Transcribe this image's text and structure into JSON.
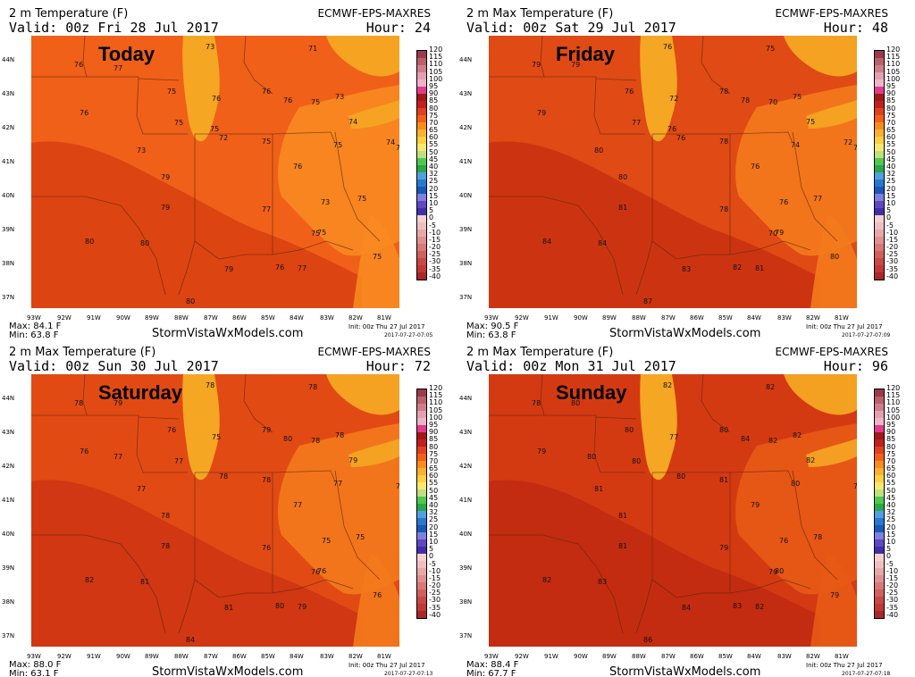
{
  "panels": [
    {
      "title": "2 m Temperature (F)",
      "valid": "Valid: 00z Fri 28 Jul 2017",
      "model": "ECMWF-EPS-MAXRES",
      "hour": "Hour: 24",
      "day": "Today",
      "max": "Max: 84.1 F",
      "min": "Min: 63.8 F",
      "stamp": "2017-07-27-07:05",
      "values": [
        [
          "73",
          195,
          8
        ],
        [
          "71",
          310,
          10
        ],
        [
          "76",
          48,
          28
        ],
        [
          "77",
          92,
          32
        ],
        [
          "75",
          152,
          58
        ],
        [
          "76",
          258,
          58
        ],
        [
          "76",
          282,
          68
        ],
        [
          "75",
          313,
          70
        ],
        [
          "73",
          340,
          64
        ],
        [
          "76",
          202,
          66
        ],
        [
          "76",
          54,
          82
        ],
        [
          "75",
          160,
          93
        ],
        [
          "74",
          355,
          92
        ],
        [
          "75",
          200,
          100
        ],
        [
          "72",
          210,
          110
        ],
        [
          "75",
          258,
          114
        ],
        [
          "75",
          338,
          118
        ],
        [
          "75",
          408,
          121
        ],
        [
          "75",
          440,
          131
        ],
        [
          "74",
          397,
          115
        ],
        [
          "73",
          118,
          124
        ],
        [
          "76",
          293,
          142
        ],
        [
          "79",
          145,
          154
        ],
        [
          "75",
          365,
          178
        ],
        [
          "73",
          324,
          182
        ],
        [
          "79",
          145,
          188
        ],
        [
          "77",
          258,
          190
        ],
        [
          "73",
          417,
          205
        ],
        [
          "75",
          313,
          217
        ],
        [
          "75",
          320,
          216
        ],
        [
          "80",
          60,
          226
        ],
        [
          "80",
          122,
          228
        ],
        [
          "74",
          412,
          244
        ],
        [
          "76",
          273,
          255
        ],
        [
          "77",
          298,
          256
        ],
        [
          "75",
          382,
          243
        ],
        [
          "79",
          216,
          257
        ],
        [
          "70",
          430,
          266
        ],
        [
          "80",
          173,
          293
        ]
      ]
    },
    {
      "title": "2 m Max Temperature (F)",
      "valid": "Valid: 00z Sat 29 Jul 2017",
      "model": "ECMWF-EPS-MAXRES",
      "hour": "Hour: 48",
      "day": "Friday",
      "max": "Max: 90.5 F",
      "min": "Min: 63.8 F",
      "stamp": "2017-07-27-07:09",
      "values": [
        [
          "76",
          195,
          8
        ],
        [
          "75",
          310,
          10
        ],
        [
          "79",
          48,
          28
        ],
        [
          "79",
          92,
          28
        ],
        [
          "76",
          152,
          58
        ],
        [
          "78",
          258,
          58
        ],
        [
          "78",
          282,
          68
        ],
        [
          "70",
          313,
          70
        ],
        [
          "75",
          340,
          64
        ],
        [
          "72",
          202,
          66
        ],
        [
          "79",
          54,
          82
        ],
        [
          "77",
          160,
          93
        ],
        [
          "75",
          355,
          92
        ],
        [
          "76",
          200,
          100
        ],
        [
          "76",
          210,
          110
        ],
        [
          "78",
          258,
          114
        ],
        [
          "74",
          338,
          118
        ],
        [
          "70",
          408,
          121
        ],
        [
          "75",
          440,
          131
        ],
        [
          "72",
          397,
          115
        ],
        [
          "80",
          118,
          124
        ],
        [
          "76",
          293,
          142
        ],
        [
          "80",
          145,
          154
        ],
        [
          "76",
          325,
          182
        ],
        [
          "81",
          145,
          188
        ],
        [
          "78",
          258,
          190
        ],
        [
          "79",
          417,
          205
        ],
        [
          "77",
          363,
          178
        ],
        [
          "70",
          313,
          217
        ],
        [
          "79",
          320,
          216
        ],
        [
          "84",
          60,
          226
        ],
        [
          "84",
          122,
          228
        ],
        [
          "78",
          412,
          244
        ],
        [
          "82",
          273,
          255
        ],
        [
          "81",
          298,
          256
        ],
        [
          "80",
          382,
          243
        ],
        [
          "83",
          216,
          257
        ],
        [
          "75",
          430,
          266
        ],
        [
          "87",
          173,
          293
        ]
      ]
    },
    {
      "title": "2 m Max Temperature (F)",
      "valid": "Valid: 00z Sun 30 Jul 2017",
      "model": "ECMWF-EPS-MAXRES",
      "hour": "Hour: 72",
      "day": "Saturday",
      "max": "Max: 88.0 F",
      "min": "Min: 63.1 F",
      "stamp": "2017-07-27-07:13",
      "values": [
        [
          "78",
          195,
          8
        ],
        [
          "78",
          310,
          10
        ],
        [
          "78",
          48,
          28
        ],
        [
          "79",
          92,
          28
        ],
        [
          "76",
          152,
          58
        ],
        [
          "79",
          258,
          58
        ],
        [
          "80",
          282,
          68
        ],
        [
          "78",
          313,
          70
        ],
        [
          "78",
          340,
          64
        ],
        [
          "75",
          202,
          66
        ],
        [
          "76",
          54,
          82
        ],
        [
          "77",
          160,
          93
        ],
        [
          "79",
          355,
          92
        ],
        [
          "77",
          92,
          88
        ],
        [
          "78",
          210,
          110
        ],
        [
          "78",
          258,
          114
        ],
        [
          "77",
          338,
          118
        ],
        [
          "72",
          408,
          121
        ],
        [
          "75",
          440,
          131
        ],
        [
          "77",
          118,
          124
        ],
        [
          "77",
          293,
          142
        ],
        [
          "78",
          145,
          154
        ],
        [
          "75",
          363,
          178
        ],
        [
          "75",
          325,
          182
        ],
        [
          "78",
          145,
          188
        ],
        [
          "76",
          258,
          190
        ],
        [
          "73",
          417,
          205
        ],
        [
          "76",
          313,
          217
        ],
        [
          "76",
          320,
          216
        ],
        [
          "82",
          60,
          226
        ],
        [
          "81",
          122,
          228
        ],
        [
          "72",
          412,
          244
        ],
        [
          "80",
          273,
          255
        ],
        [
          "79",
          298,
          256
        ],
        [
          "76",
          382,
          243
        ],
        [
          "81",
          216,
          257
        ],
        [
          "68",
          430,
          266
        ],
        [
          "84",
          173,
          293
        ]
      ]
    },
    {
      "title": "2 m Max Temperature (F)",
      "valid": "Valid: 00z Mon 31 Jul 2017",
      "model": "ECMWF-EPS-MAXRES",
      "hour": "Hour: 96",
      "day": "Sunday",
      "max": "Max: 88.4 F",
      "min": "Min: 67.7 F",
      "stamp": "2017-07-27-07:18",
      "values": [
        [
          "82",
          195,
          8
        ],
        [
          "82",
          310,
          10
        ],
        [
          "78",
          48,
          28
        ],
        [
          "80",
          92,
          28
        ],
        [
          "80",
          152,
          58
        ],
        [
          "80",
          258,
          58
        ],
        [
          "84",
          282,
          68
        ],
        [
          "82",
          313,
          70
        ],
        [
          "82",
          340,
          64
        ],
        [
          "77",
          202,
          66
        ],
        [
          "79",
          54,
          82
        ],
        [
          "80",
          110,
          88
        ],
        [
          "82",
          355,
          92
        ],
        [
          "80",
          160,
          93
        ],
        [
          "80",
          210,
          110
        ],
        [
          "81",
          258,
          114
        ],
        [
          "80",
          338,
          118
        ],
        [
          "74",
          408,
          121
        ],
        [
          "77",
          440,
          131
        ],
        [
          "81",
          118,
          124
        ],
        [
          "79",
          293,
          142
        ],
        [
          "81",
          145,
          154
        ],
        [
          "78",
          363,
          178
        ],
        [
          "76",
          325,
          182
        ],
        [
          "81",
          145,
          188
        ],
        [
          "79",
          258,
          190
        ],
        [
          "78",
          417,
          205
        ],
        [
          "79",
          313,
          217
        ],
        [
          "80",
          320,
          216
        ],
        [
          "82",
          60,
          226
        ],
        [
          "83",
          122,
          228
        ],
        [
          "77",
          412,
          244
        ],
        [
          "83",
          273,
          255
        ],
        [
          "82",
          298,
          256
        ],
        [
          "79",
          382,
          243
        ],
        [
          "84",
          216,
          257
        ],
        [
          "71",
          430,
          266
        ],
        [
          "86",
          173,
          293
        ]
      ]
    }
  ],
  "lat_labels": [
    "44N",
    "43N",
    "42N",
    "41N",
    "40N",
    "39N",
    "38N",
    "37N"
  ],
  "lon_labels": [
    "93W",
    "92W",
    "91W",
    "90W",
    "89W",
    "88W",
    "87W",
    "86W",
    "85W",
    "84W",
    "83W",
    "82W",
    "81W"
  ],
  "site": "StormVistaWxModels.com",
  "init": "Init: 00z Thu 27 Jul 2017",
  "colorbar": {
    "labels": [
      "120",
      "115",
      "110",
      "105",
      "100",
      "95",
      "90",
      "85",
      "80",
      "75",
      "70",
      "65",
      "60",
      "55",
      "50",
      "45",
      "40",
      "32",
      "25",
      "20",
      "15",
      "10",
      "5",
      "0",
      "-5",
      "-10",
      "-15",
      "-20",
      "-25",
      "-30",
      "-35",
      "-40"
    ],
    "colors": [
      "#9b3a4a",
      "#b8606c",
      "#cc7f8a",
      "#e4a0b0",
      "#f0b4c8",
      "#e03c8c",
      "#a01818",
      "#c02020",
      "#e04020",
      "#f26018",
      "#f88c1c",
      "#fab030",
      "#fcd040",
      "#f8e870",
      "#c0e080",
      "#50c850",
      "#28a848",
      "#50a0e0",
      "#2878d0",
      "#1858b8",
      "#8080e0",
      "#6048c0",
      "#4030a8",
      "#f4d0d0",
      "#f0c0c0",
      "#e8a8a8",
      "#e09090",
      "#d87878",
      "#d06060",
      "#c84848",
      "#c03838",
      "#a82828"
    ]
  }
}
